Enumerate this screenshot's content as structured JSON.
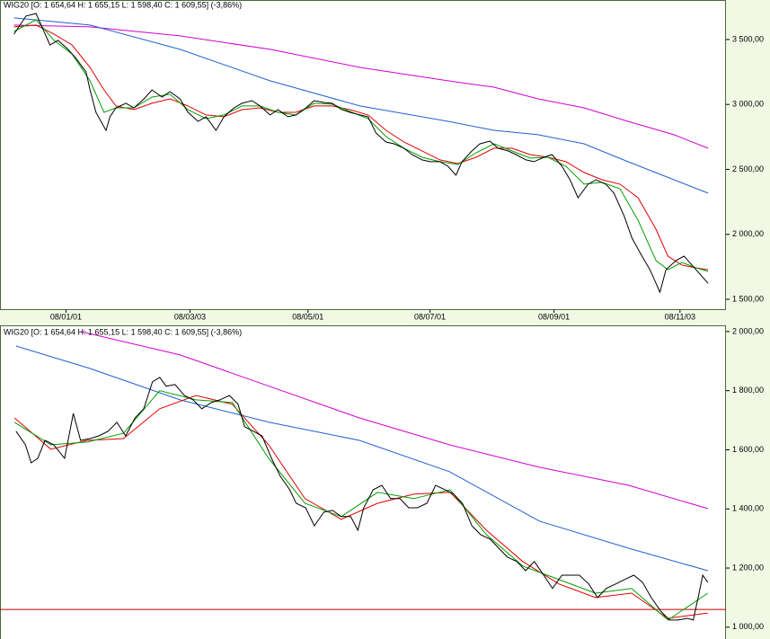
{
  "chart_data": [
    {
      "type": "line",
      "title": "WIG20 [O: 1 654,64  H: 1 655,15  L: 1 598,40  C: 1 609,55] (-3,86%)",
      "xlim": [
        0,
        363
      ],
      "ylim": [
        1417,
        3804
      ],
      "xticks": [
        {
          "value": 33,
          "label": "08/01/01"
        },
        {
          "value": 95,
          "label": "08/03/03"
        },
        {
          "value": 154,
          "label": "08/05/01"
        },
        {
          "value": 215,
          "label": "08/07/01"
        },
        {
          "value": 277,
          "label": "08/09/01"
        },
        {
          "value": 340,
          "label": "08/11/03"
        }
      ],
      "yticks": [
        {
          "value": 1500,
          "label": "1 500,00"
        },
        {
          "value": 2000,
          "label": "2 000,00"
        },
        {
          "value": 2500,
          "label": "2 500,00"
        },
        {
          "value": 3000,
          "label": "3 000,00"
        },
        {
          "value": 3500,
          "label": "3 500,00"
        }
      ],
      "series": [
        {
          "color": "#d000d0",
          "x": [
            7,
            45,
            90,
            135,
            180,
            224,
            247,
            269,
            292,
            314,
            337,
            354
          ],
          "values": [
            3611,
            3597,
            3528,
            3424,
            3285,
            3182,
            3133,
            3043,
            2974,
            2870,
            2767,
            2663
          ]
        },
        {
          "color": "#2060d0",
          "x": [
            7,
            45,
            90,
            135,
            180,
            224,
            247,
            269,
            292,
            314,
            337,
            354
          ],
          "values": [
            3666,
            3611,
            3424,
            3182,
            2988,
            2870,
            2801,
            2767,
            2697,
            2559,
            2420,
            2317
          ]
        },
        {
          "color": "#e00000",
          "x": [
            7,
            18,
            27,
            36,
            45,
            52,
            58,
            67,
            76,
            85,
            94,
            103,
            112,
            121,
            130,
            139,
            148,
            157,
            166,
            175,
            184,
            193,
            202,
            211,
            220,
            229,
            238,
            247,
            256,
            265,
            274,
            283,
            292,
            301,
            310,
            319,
            328,
            334,
            341,
            348,
            354
          ],
          "values": [
            3597,
            3611,
            3542,
            3458,
            3285,
            3112,
            2988,
            2960,
            3009,
            3043,
            2988,
            2919,
            2905,
            2960,
            2974,
            2939,
            2939,
            2988,
            2988,
            2960,
            2919,
            2801,
            2711,
            2642,
            2573,
            2545,
            2593,
            2663,
            2663,
            2614,
            2593,
            2559,
            2476,
            2420,
            2386,
            2282,
            2040,
            1832,
            1763,
            1742,
            1728
          ]
        },
        {
          "color": "#00a000",
          "x": [
            7,
            18,
            27,
            36,
            45,
            52,
            58,
            67,
            76,
            85,
            94,
            103,
            112,
            121,
            130,
            139,
            148,
            157,
            166,
            175,
            184,
            193,
            202,
            211,
            220,
            229,
            238,
            247,
            256,
            265,
            274,
            283,
            292,
            301,
            310,
            319,
            328,
            334,
            341,
            348,
            354
          ],
          "values": [
            3562,
            3652,
            3493,
            3389,
            3182,
            2939,
            2974,
            2974,
            3057,
            3078,
            2960,
            2891,
            2919,
            2988,
            2988,
            2939,
            2919,
            3009,
            3002,
            2946,
            2891,
            2753,
            2663,
            2593,
            2559,
            2538,
            2628,
            2697,
            2642,
            2587,
            2593,
            2524,
            2386,
            2400,
            2351,
            2109,
            1798,
            1728,
            1784,
            1742,
            1715
          ]
        },
        {
          "color": "#000000",
          "x": [
            7,
            13,
            18,
            21,
            25,
            29,
            34,
            38,
            43,
            45,
            48,
            53,
            55,
            58,
            63,
            67,
            72,
            76,
            81,
            85,
            90,
            94,
            99,
            103,
            108,
            112,
            117,
            121,
            126,
            130,
            135,
            139,
            144,
            148,
            153,
            157,
            162,
            166,
            171,
            175,
            180,
            184,
            188,
            193,
            197,
            202,
            206,
            211,
            215,
            220,
            224,
            228,
            231,
            236,
            240,
            245,
            249,
            254,
            258,
            263,
            267,
            272,
            276,
            281,
            285,
            289,
            294,
            298,
            303,
            307,
            312,
            316,
            321,
            325,
            330,
            333,
            338,
            342,
            346,
            350,
            354
          ],
          "values": [
            3541,
            3680,
            3700,
            3597,
            3458,
            3493,
            3424,
            3355,
            3251,
            3112,
            2939,
            2800,
            2905,
            2974,
            3009,
            2974,
            3043,
            3112,
            3057,
            3098,
            3043,
            2939,
            2870,
            2905,
            2800,
            2905,
            2974,
            3009,
            3029,
            2988,
            2919,
            2960,
            2905,
            2919,
            2974,
            3029,
            3015,
            3009,
            2960,
            2939,
            2919,
            2905,
            2780,
            2711,
            2697,
            2663,
            2614,
            2573,
            2559,
            2559,
            2524,
            2455,
            2559,
            2642,
            2697,
            2718,
            2663,
            2642,
            2614,
            2573,
            2559,
            2593,
            2614,
            2524,
            2420,
            2282,
            2385,
            2420,
            2385,
            2317,
            2144,
            1971,
            1832,
            1728,
            1555,
            1728,
            1798,
            1832,
            1762,
            1693,
            1623
          ]
        }
      ]
    },
    {
      "type": "line",
      "title": "WIG20 [O: 1 654,64  H: 1 655,15  L: 1 598,40  C: 1 609,55] (-3,86%)",
      "xlim": [
        0,
        100
      ],
      "ylim": [
        960,
        2021
      ],
      "yticks": [
        {
          "value": 1000,
          "label": "1 000,00"
        },
        {
          "value": 1200,
          "label": "1 200,00"
        },
        {
          "value": 1400,
          "label": "1 400,00"
        },
        {
          "value": 1600,
          "label": "1 600,00"
        },
        {
          "value": 1800,
          "label": "1 800,00"
        },
        {
          "value": 2000,
          "label": "2 000,00"
        }
      ],
      "hline": {
        "value": 1060,
        "color": "#c00000"
      },
      "series": [
        {
          "color": "#d000d0",
          "x": [
            11.1,
            24.8,
            37.1,
            49.5,
            61.9,
            74.3,
            86.6,
            97.5
          ],
          "values": [
            2000,
            1921,
            1815,
            1708,
            1617,
            1541,
            1480,
            1401
          ]
        },
        {
          "color": "#2060d0",
          "x": [
            2.2,
            12.4,
            24.8,
            37.1,
            49.5,
            61.9,
            74.3,
            86.6,
            97.5
          ],
          "values": [
            1951,
            1875,
            1769,
            1693,
            1632,
            1526,
            1359,
            1267,
            1191
          ]
        },
        {
          "color": "#e00000",
          "x": [
            2,
            7,
            12,
            17,
            22,
            27,
            32,
            37,
            42,
            47,
            52,
            57,
            62,
            67,
            72,
            77,
            82,
            87,
            92,
            97.5
          ],
          "values": [
            1708,
            1602,
            1632,
            1638,
            1739,
            1784,
            1754,
            1617,
            1435,
            1365,
            1419,
            1450,
            1456,
            1328,
            1222,
            1146,
            1100,
            1115,
            1030,
            1048
          ]
        },
        {
          "color": "#00a000",
          "x": [
            2,
            7,
            12,
            17,
            22,
            27,
            32,
            37,
            42,
            47,
            52,
            57,
            62,
            67,
            72,
            77,
            82,
            87,
            92,
            97.5
          ],
          "values": [
            1693,
            1617,
            1626,
            1656,
            1800,
            1769,
            1760,
            1571,
            1419,
            1374,
            1456,
            1435,
            1465,
            1313,
            1207,
            1161,
            1115,
            1131,
            1024,
            1115
          ]
        },
        {
          "color": "#000000",
          "x": [
            2.2,
            3.5,
            4.3,
            5.2,
            6.2,
            7.4,
            8.9,
            10.1,
            11.1,
            12.4,
            13.6,
            14.9,
            16.1,
            17.3,
            18.6,
            19.8,
            21,
            22,
            22.9,
            24.1,
            25.4,
            26.6,
            27.8,
            29.1,
            30.3,
            31.6,
            32.8,
            33.7,
            34.9,
            36.1,
            37.4,
            38.6,
            39.9,
            40.8,
            42.1,
            43.3,
            44.6,
            45.8,
            47,
            48.3,
            49.3,
            50.1,
            51.4,
            52.6,
            53.8,
            55.1,
            56.3,
            57.5,
            58.8,
            60,
            61.3,
            62.5,
            63.7,
            65,
            66.2,
            67.5,
            68.7,
            69.9,
            71.2,
            72.4,
            73.6,
            74.9,
            76.1,
            77.4,
            78.6,
            79.8,
            81.1,
            82.3,
            83.5,
            84.8,
            86,
            87.3,
            88.5,
            89.7,
            91,
            92.2,
            93.4,
            94.7,
            95.5,
            96.3,
            96.8,
            97.5
          ],
          "values": [
            1663,
            1617,
            1556,
            1571,
            1632,
            1617,
            1571,
            1723,
            1632,
            1638,
            1647,
            1663,
            1693,
            1647,
            1708,
            1739,
            1830,
            1845,
            1815,
            1821,
            1784,
            1769,
            1739,
            1760,
            1769,
            1784,
            1754,
            1678,
            1663,
            1647,
            1571,
            1511,
            1465,
            1419,
            1404,
            1343,
            1389,
            1395,
            1374,
            1374,
            1328,
            1404,
            1465,
            1480,
            1435,
            1435,
            1404,
            1404,
            1419,
            1480,
            1465,
            1450,
            1419,
            1343,
            1313,
            1298,
            1267,
            1237,
            1222,
            1191,
            1222,
            1176,
            1131,
            1176,
            1176,
            1176,
            1146,
            1100,
            1131,
            1146,
            1161,
            1176,
            1152,
            1100,
            1055,
            1024,
            1024,
            1030,
            1024,
            1115,
            1176,
            1152
          ]
        }
      ]
    }
  ]
}
